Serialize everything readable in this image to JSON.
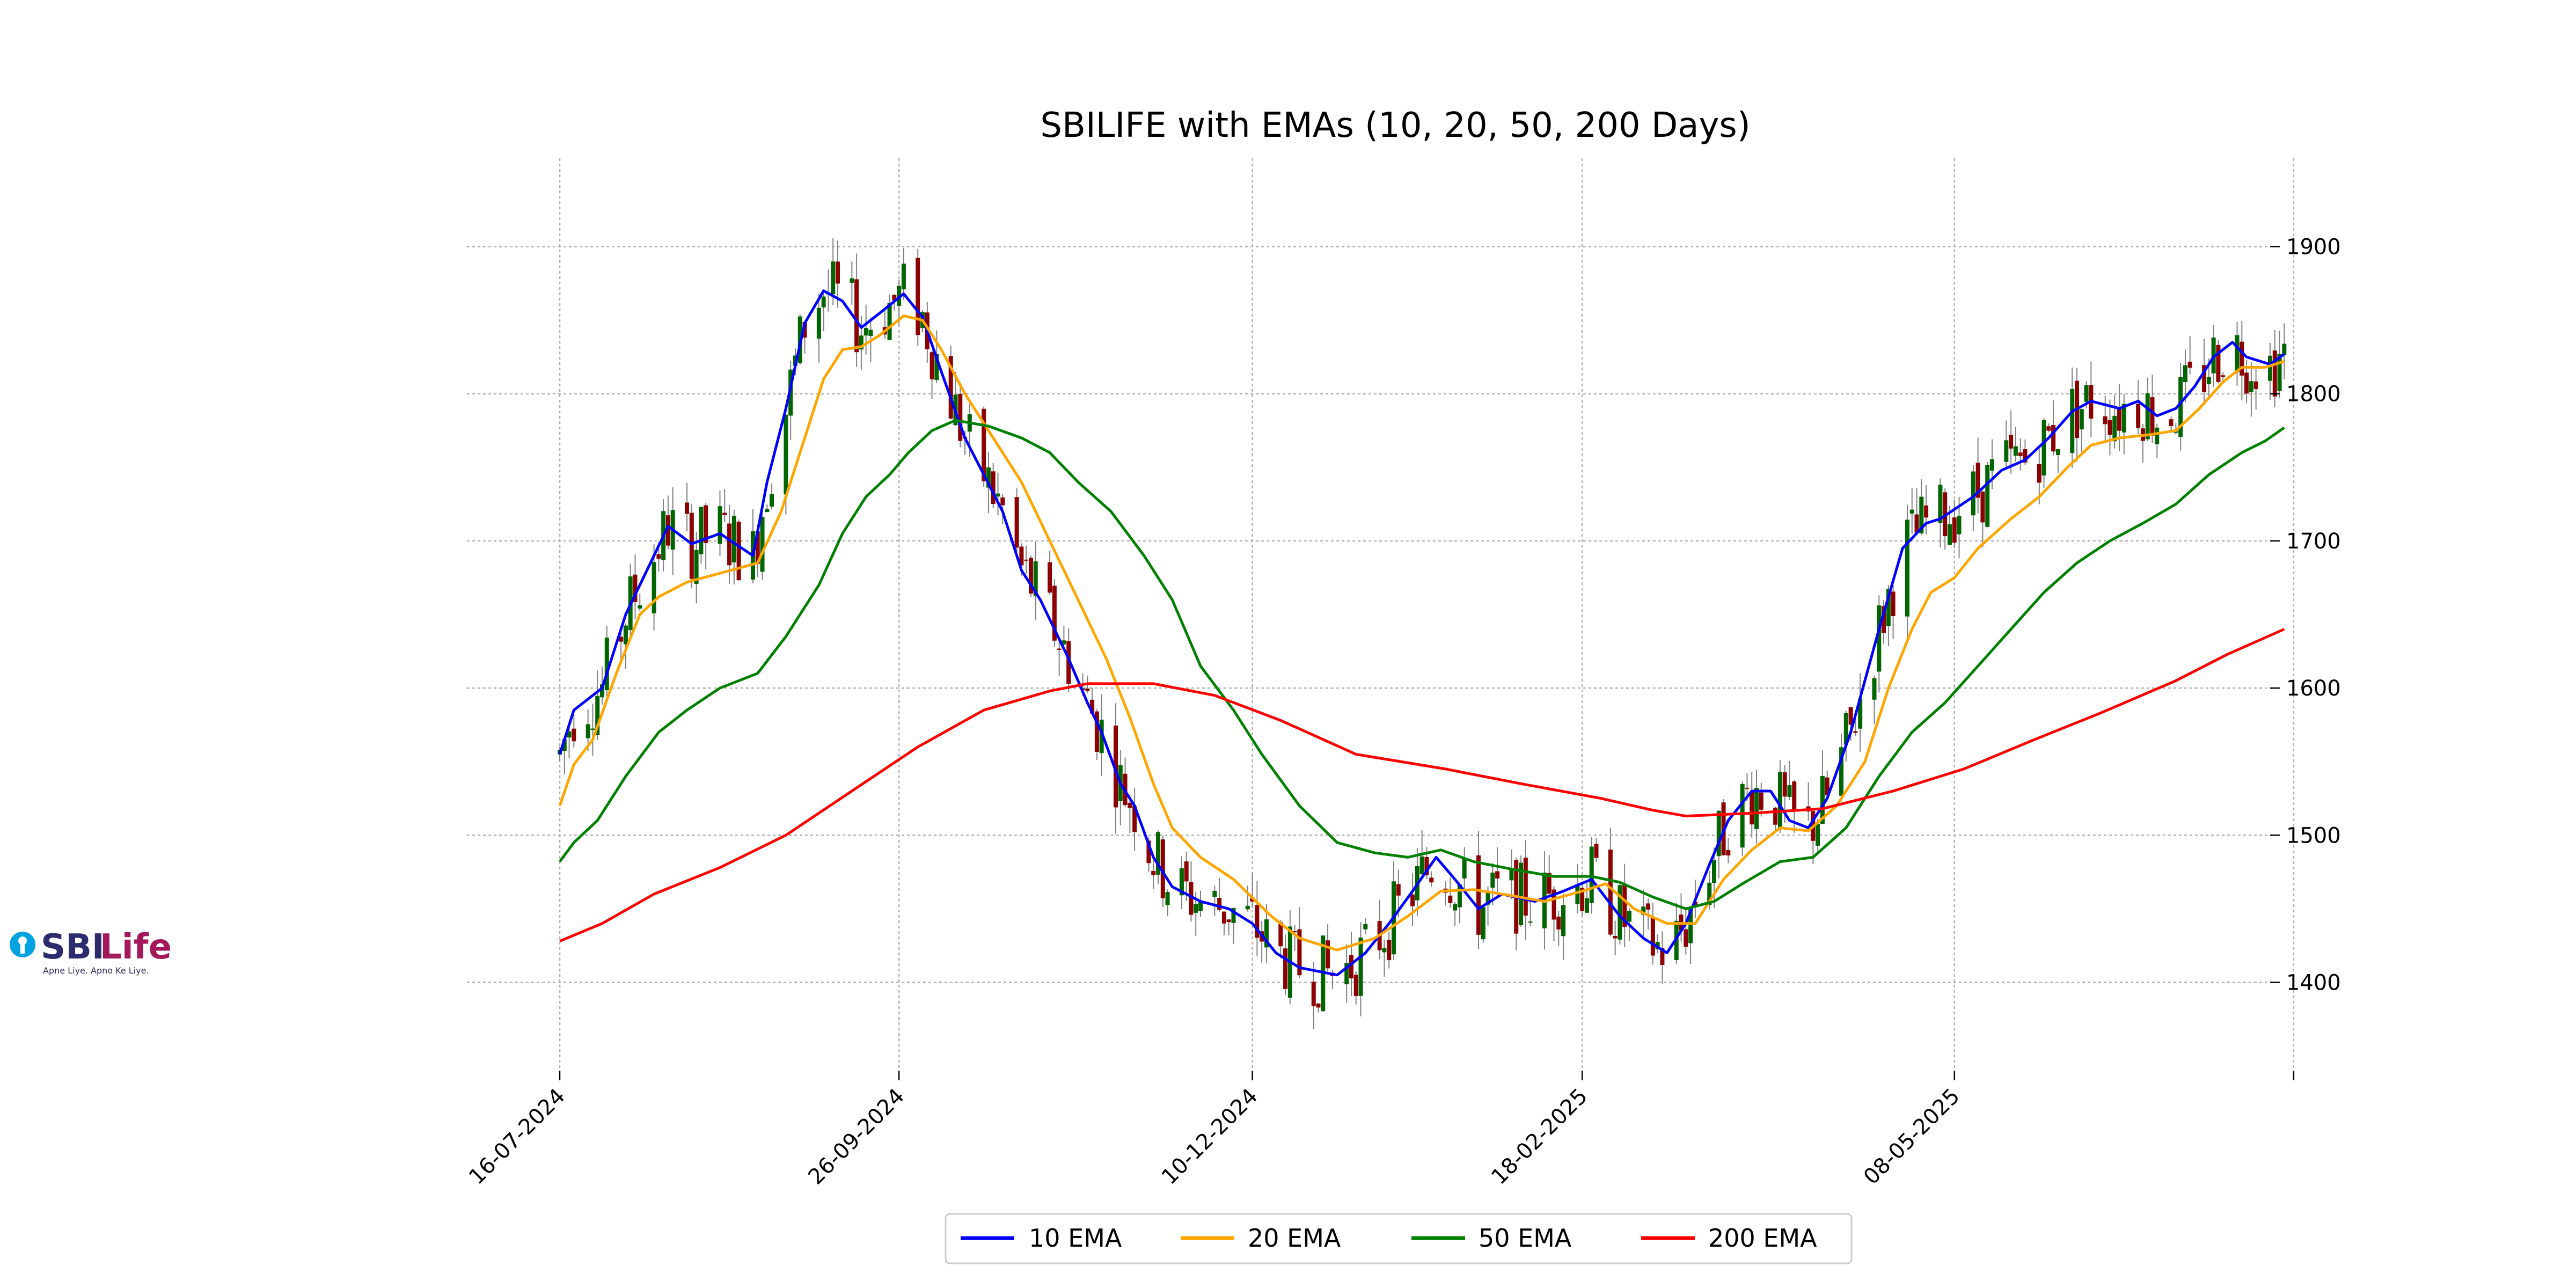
{
  "logo": {
    "brand_a": "SBI",
    "brand_b": "Life",
    "tagline": "Apne Liye. Apno Ke Liye."
  },
  "chart_data": {
    "type": "line",
    "title": "SBILIFE with EMAs (10, 20, 50, 200 Days)",
    "xlabel": "",
    "ylabel": "",
    "x_range": [
      "2024-07-16",
      "2025-07-14"
    ],
    "ylim": [
      1340,
      1960
    ],
    "y_ticks": [
      1400,
      1500,
      1600,
      1700,
      1800,
      1900
    ],
    "y_tick_labels": [
      "1400",
      "1500",
      "1600",
      "1700",
      "1800",
      "1900"
    ],
    "x_ticks": [
      "2024-07-16",
      "2024-09-26",
      "2024-12-10",
      "2025-02-18",
      "2025-05-08",
      "2025-07-19"
    ],
    "x_tick_labels": [
      "16-07-2024",
      "26-09-2024",
      "10-12-2024",
      "18-02-2025",
      "08-05-2025",
      ""
    ],
    "grid": true,
    "legend": "bottom-center",
    "colors": {
      "up": "#006400",
      "down": "#8b0000",
      "wick": "#808080"
    },
    "series": [
      {
        "name": "10 EMA",
        "color": "#0000ff",
        "points": [
          [
            "2024-07-16",
            1555
          ],
          [
            "2024-07-19",
            1585
          ],
          [
            "2024-07-25",
            1600
          ],
          [
            "2024-07-30",
            1650
          ],
          [
            "2024-08-05",
            1690
          ],
          [
            "2024-08-08",
            1710
          ],
          [
            "2024-08-13",
            1698
          ],
          [
            "2024-08-19",
            1705
          ],
          [
            "2024-08-26",
            1690
          ],
          [
            "2024-08-29",
            1740
          ],
          [
            "2024-09-02",
            1790
          ],
          [
            "2024-09-06",
            1848
          ],
          [
            "2024-09-10",
            1870
          ],
          [
            "2024-09-14",
            1863
          ],
          [
            "2024-09-18",
            1845
          ],
          [
            "2024-09-22",
            1855
          ],
          [
            "2024-09-27",
            1868
          ],
          [
            "2024-10-01",
            1852
          ],
          [
            "2024-10-05",
            1815
          ],
          [
            "2024-10-10",
            1770
          ],
          [
            "2024-10-14",
            1745
          ],
          [
            "2024-10-18",
            1720
          ],
          [
            "2024-10-22",
            1680
          ],
          [
            "2024-10-26",
            1660
          ],
          [
            "2024-11-01",
            1620
          ],
          [
            "2024-11-05",
            1590
          ],
          [
            "2024-11-08",
            1570
          ],
          [
            "2024-11-12",
            1535
          ],
          [
            "2024-11-15",
            1520
          ],
          [
            "2024-11-19",
            1485
          ],
          [
            "2024-11-23",
            1465
          ],
          [
            "2024-11-29",
            1455
          ],
          [
            "2024-12-05",
            1450
          ],
          [
            "2024-12-10",
            1440
          ],
          [
            "2024-12-15",
            1420
          ],
          [
            "2024-12-20",
            1410
          ],
          [
            "2024-12-28",
            1405
          ],
          [
            "2025-01-03",
            1420
          ],
          [
            "2025-01-08",
            1440
          ],
          [
            "2025-01-13",
            1462
          ],
          [
            "2025-01-18",
            1485
          ],
          [
            "2025-01-22",
            1470
          ],
          [
            "2025-01-27",
            1450
          ],
          [
            "2025-02-01",
            1460
          ],
          [
            "2025-02-08",
            1455
          ],
          [
            "2025-02-14",
            1462
          ],
          [
            "2025-02-20",
            1470
          ],
          [
            "2025-02-26",
            1445
          ],
          [
            "2025-03-03",
            1430
          ],
          [
            "2025-03-08",
            1420
          ],
          [
            "2025-03-12",
            1440
          ],
          [
            "2025-03-17",
            1480
          ],
          [
            "2025-03-21",
            1510
          ],
          [
            "2025-03-26",
            1530
          ],
          [
            "2025-03-30",
            1530
          ],
          [
            "2025-04-03",
            1510
          ],
          [
            "2025-04-07",
            1505
          ],
          [
            "2025-04-11",
            1525
          ],
          [
            "2025-04-16",
            1570
          ],
          [
            "2025-04-22",
            1640
          ],
          [
            "2025-04-27",
            1695
          ],
          [
            "2025-05-02",
            1712
          ],
          [
            "2025-05-05",
            1715
          ],
          [
            "2025-05-12",
            1730
          ],
          [
            "2025-05-18",
            1748
          ],
          [
            "2025-05-23",
            1755
          ],
          [
            "2025-05-28",
            1770
          ],
          [
            "2025-06-02",
            1788
          ],
          [
            "2025-06-06",
            1795
          ],
          [
            "2025-06-12",
            1790
          ],
          [
            "2025-06-16",
            1795
          ],
          [
            "2025-06-20",
            1785
          ],
          [
            "2025-06-24",
            1790
          ],
          [
            "2025-06-28",
            1805
          ],
          [
            "2025-07-02",
            1825
          ],
          [
            "2025-07-06",
            1835
          ],
          [
            "2025-07-09",
            1825
          ],
          [
            "2025-07-14",
            1820
          ],
          [
            "2025-07-17",
            1827
          ]
        ]
      },
      {
        "name": "20 EMA",
        "color": "#ffa500",
        "points": [
          [
            "2024-07-16",
            1520
          ],
          [
            "2024-07-19",
            1548
          ],
          [
            "2024-07-23",
            1565
          ],
          [
            "2024-07-28",
            1610
          ],
          [
            "2024-08-02",
            1650
          ],
          [
            "2024-08-06",
            1662
          ],
          [
            "2024-08-12",
            1672
          ],
          [
            "2024-08-19",
            1678
          ],
          [
            "2024-08-27",
            1685
          ],
          [
            "2024-09-01",
            1720
          ],
          [
            "2024-09-06",
            1770
          ],
          [
            "2024-09-10",
            1810
          ],
          [
            "2024-09-14",
            1830
          ],
          [
            "2024-09-18",
            1832
          ],
          [
            "2024-09-22",
            1840
          ],
          [
            "2024-09-27",
            1853
          ],
          [
            "2024-10-01",
            1850
          ],
          [
            "2024-10-05",
            1830
          ],
          [
            "2024-10-10",
            1800
          ],
          [
            "2024-10-16",
            1770
          ],
          [
            "2024-10-22",
            1740
          ],
          [
            "2024-10-28",
            1700
          ],
          [
            "2024-11-03",
            1660
          ],
          [
            "2024-11-09",
            1620
          ],
          [
            "2024-11-14",
            1580
          ],
          [
            "2024-11-19",
            1535
          ],
          [
            "2024-11-23",
            1505
          ],
          [
            "2024-11-29",
            1485
          ],
          [
            "2024-12-06",
            1470
          ],
          [
            "2024-12-14",
            1445
          ],
          [
            "2024-12-20",
            1430
          ],
          [
            "2024-12-28",
            1422
          ],
          [
            "2025-01-05",
            1430
          ],
          [
            "2025-01-12",
            1445
          ],
          [
            "2025-01-19",
            1462
          ],
          [
            "2025-01-26",
            1463
          ],
          [
            "2025-02-01",
            1460
          ],
          [
            "2025-02-10",
            1455
          ],
          [
            "2025-02-18",
            1462
          ],
          [
            "2025-02-23",
            1467
          ],
          [
            "2025-03-01",
            1450
          ],
          [
            "2025-03-08",
            1440
          ],
          [
            "2025-03-14",
            1440
          ],
          [
            "2025-03-20",
            1470
          ],
          [
            "2025-03-26",
            1490
          ],
          [
            "2025-04-01",
            1505
          ],
          [
            "2025-04-07",
            1503
          ],
          [
            "2025-04-13",
            1520
          ],
          [
            "2025-04-19",
            1550
          ],
          [
            "2025-04-24",
            1600
          ],
          [
            "2025-04-29",
            1640
          ],
          [
            "2025-05-03",
            1665
          ],
          [
            "2025-05-08",
            1675
          ],
          [
            "2025-05-13",
            1695
          ],
          [
            "2025-05-20",
            1715
          ],
          [
            "2025-05-26",
            1730
          ],
          [
            "2025-06-01",
            1750
          ],
          [
            "2025-06-06",
            1765
          ],
          [
            "2025-06-12",
            1770
          ],
          [
            "2025-06-18",
            1772
          ],
          [
            "2025-06-24",
            1775
          ],
          [
            "2025-06-29",
            1790
          ],
          [
            "2025-07-04",
            1808
          ],
          [
            "2025-07-08",
            1818
          ],
          [
            "2025-07-13",
            1818
          ],
          [
            "2025-07-17",
            1822
          ]
        ]
      },
      {
        "name": "50 EMA",
        "color": "#008000",
        "points": [
          [
            "2024-07-16",
            1482
          ],
          [
            "2024-07-19",
            1495
          ],
          [
            "2024-07-24",
            1510
          ],
          [
            "2024-07-30",
            1540
          ],
          [
            "2024-08-06",
            1570
          ],
          [
            "2024-08-12",
            1585
          ],
          [
            "2024-08-19",
            1600
          ],
          [
            "2024-08-27",
            1610
          ],
          [
            "2024-09-02",
            1635
          ],
          [
            "2024-09-09",
            1670
          ],
          [
            "2024-09-14",
            1705
          ],
          [
            "2024-09-19",
            1730
          ],
          [
            "2024-09-24",
            1745
          ],
          [
            "2024-09-28",
            1760
          ],
          [
            "2024-10-03",
            1775
          ],
          [
            "2024-10-08",
            1782
          ],
          [
            "2024-10-15",
            1778
          ],
          [
            "2024-10-22",
            1770
          ],
          [
            "2024-10-28",
            1760
          ],
          [
            "2024-11-03",
            1740
          ],
          [
            "2024-11-10",
            1720
          ],
          [
            "2024-11-17",
            1690
          ],
          [
            "2024-11-23",
            1660
          ],
          [
            "2024-11-29",
            1615
          ],
          [
            "2024-12-06",
            1585
          ],
          [
            "2024-12-12",
            1555
          ],
          [
            "2024-12-20",
            1520
          ],
          [
            "2024-12-28",
            1495
          ],
          [
            "2025-01-05",
            1488
          ],
          [
            "2025-01-12",
            1485
          ],
          [
            "2025-01-19",
            1490
          ],
          [
            "2025-01-26",
            1482
          ],
          [
            "2025-02-03",
            1477
          ],
          [
            "2025-02-12",
            1472
          ],
          [
            "2025-02-20",
            1472
          ],
          [
            "2025-02-26",
            1468
          ],
          [
            "2025-03-05",
            1458
          ],
          [
            "2025-03-12",
            1450
          ],
          [
            "2025-03-18",
            1455
          ],
          [
            "2025-03-24",
            1467
          ],
          [
            "2025-04-01",
            1482
          ],
          [
            "2025-04-08",
            1485
          ],
          [
            "2025-04-15",
            1505
          ],
          [
            "2025-04-22",
            1540
          ],
          [
            "2025-04-29",
            1570
          ],
          [
            "2025-05-06",
            1590
          ],
          [
            "2025-05-13",
            1615
          ],
          [
            "2025-05-20",
            1640
          ],
          [
            "2025-05-27",
            1665
          ],
          [
            "2025-06-03",
            1685
          ],
          [
            "2025-06-10",
            1700
          ],
          [
            "2025-06-17",
            1712
          ],
          [
            "2025-06-24",
            1725
          ],
          [
            "2025-07-01",
            1745
          ],
          [
            "2025-07-08",
            1760
          ],
          [
            "2025-07-13",
            1768
          ],
          [
            "2025-07-17",
            1777
          ]
        ]
      },
      {
        "name": "200 EMA",
        "color": "#ff0000",
        "points": [
          [
            "2024-07-16",
            1428
          ],
          [
            "2024-07-25",
            1440
          ],
          [
            "2024-08-05",
            1460
          ],
          [
            "2024-08-19",
            1478
          ],
          [
            "2024-09-02",
            1500
          ],
          [
            "2024-09-16",
            1530
          ],
          [
            "2024-09-30",
            1560
          ],
          [
            "2024-10-14",
            1585
          ],
          [
            "2024-10-28",
            1598
          ],
          [
            "2024-11-05",
            1603
          ],
          [
            "2024-11-19",
            1603
          ],
          [
            "2024-12-02",
            1595
          ],
          [
            "2024-12-16",
            1578
          ],
          [
            "2025-01-01",
            1555
          ],
          [
            "2025-01-20",
            1545
          ],
          [
            "2025-02-05",
            1535
          ],
          [
            "2025-02-22",
            1525
          ],
          [
            "2025-03-05",
            1517
          ],
          [
            "2025-03-12",
            1513
          ],
          [
            "2025-03-26",
            1515
          ],
          [
            "2025-04-10",
            1518
          ],
          [
            "2025-04-25",
            1530
          ],
          [
            "2025-05-10",
            1545
          ],
          [
            "2025-05-25",
            1565
          ],
          [
            "2025-06-08",
            1583
          ],
          [
            "2025-06-24",
            1605
          ],
          [
            "2025-07-05",
            1623
          ],
          [
            "2025-07-17",
            1640
          ]
        ]
      }
    ]
  }
}
